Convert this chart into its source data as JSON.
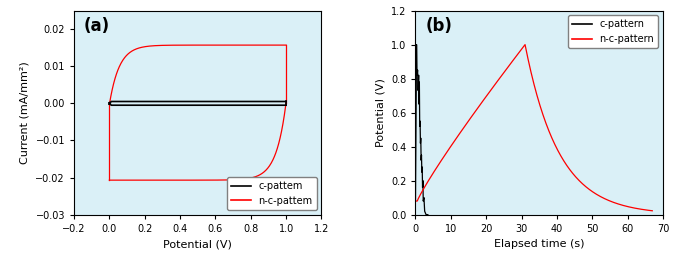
{
  "fig_width": 6.73,
  "fig_height": 2.65,
  "background_color": "#daf0f7",
  "panel_a": {
    "label": "(a)",
    "xlabel": "Potential (V)",
    "ylabel": "Current (mA/mm²)",
    "xlim": [
      -0.2,
      1.2
    ],
    "ylim": [
      -0.03,
      0.025
    ],
    "xticks": [
      -0.2,
      0.0,
      0.2,
      0.4,
      0.6,
      0.8,
      1.0,
      1.2
    ],
    "yticks": [
      -0.03,
      -0.02,
      -0.01,
      0.0,
      0.01,
      0.02
    ],
    "legend_labels": [
      "c-pattem",
      "n-c-pattem"
    ],
    "legend_colors": [
      "black",
      "red"
    ]
  },
  "panel_b": {
    "label": "(b)",
    "xlabel": "Elapsed time (s)",
    "ylabel": "Potential (V)",
    "xlim": [
      0,
      70
    ],
    "ylim": [
      0.0,
      1.2
    ],
    "xticks": [
      0,
      10,
      20,
      30,
      40,
      50,
      60,
      70
    ],
    "yticks": [
      0.0,
      0.2,
      0.4,
      0.6,
      0.8,
      1.0,
      1.2
    ],
    "legend_labels": [
      "c-pattern",
      "n-c-pattern"
    ],
    "legend_colors": [
      "black",
      "red"
    ]
  }
}
